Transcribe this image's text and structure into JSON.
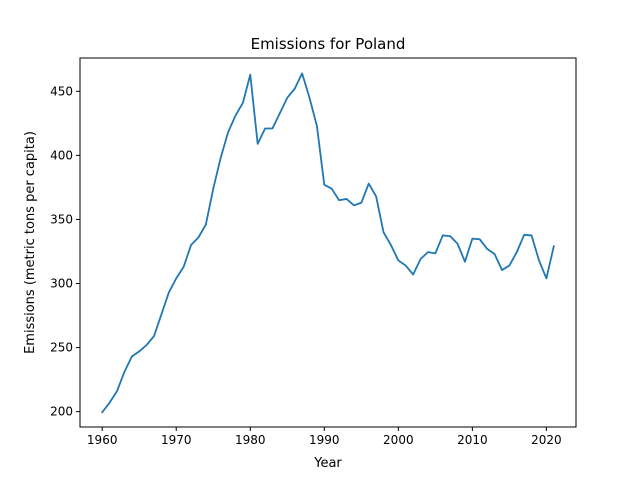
{
  "chart_data": {
    "type": "line",
    "title": "Emissions for Poland",
    "xlabel": "Year",
    "ylabel": "Emissions (metric tons per capita)",
    "xlim": [
      1957.0,
      2024.0
    ],
    "ylim": [
      188.0,
      476.0
    ],
    "x_ticks": [
      "1960",
      "1970",
      "1980",
      "1990",
      "2000",
      "2010",
      "2020"
    ],
    "y_ticks": [
      "200",
      "250",
      "300",
      "350",
      "400",
      "450"
    ],
    "grid": false,
    "color": "#1f77b4",
    "series": [
      {
        "x": [
          1960,
          1961,
          1962,
          1963,
          1964,
          1965,
          1966,
          1967,
          1968,
          1969,
          1970,
          1971,
          1972,
          1973,
          1974,
          1975,
          1976,
          1977,
          1978,
          1979,
          1980,
          1981,
          1982,
          1983,
          1984,
          1985,
          1986,
          1987,
          1988,
          1989,
          1990,
          1991,
          1992,
          1993,
          1994,
          1995,
          1996,
          1997,
          1998,
          1999,
          2000,
          2001,
          2002,
          2003,
          2004,
          2005,
          2006,
          2007,
          2008,
          2009,
          2010,
          2011,
          2012,
          2013,
          2014,
          2015,
          2016,
          2017,
          2018,
          2019,
          2020,
          2021
        ],
        "values": [
          199.5,
          207,
          216,
          231,
          243,
          247,
          252,
          259,
          276,
          293,
          304,
          313,
          330,
          336,
          346,
          374,
          398,
          418,
          431,
          441,
          463,
          409,
          421,
          421,
          433,
          445,
          452,
          464,
          445,
          423,
          377,
          374,
          365,
          366,
          361,
          363,
          378,
          368,
          340,
          330,
          318,
          314,
          307,
          319,
          324.5,
          323.5,
          337.5,
          337,
          331,
          317,
          335,
          334.5,
          327,
          323,
          310.5,
          314,
          324.5,
          338,
          337.5,
          318,
          304,
          329
        ]
      }
    ]
  }
}
